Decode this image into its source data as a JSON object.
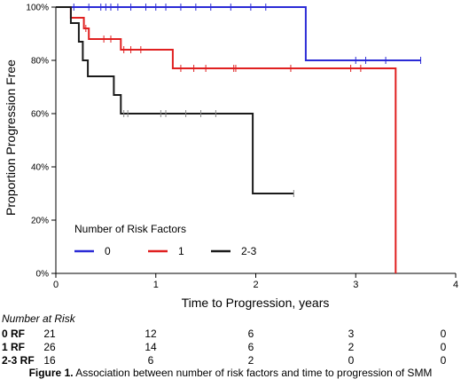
{
  "chart_data": {
    "type": "line",
    "title": "",
    "xlabel": "Time to Progression, years",
    "ylabel": "Proportion Progression Free",
    "xlim": [
      0,
      4
    ],
    "ylim": [
      0,
      100
    ],
    "x_ticks": [
      "0",
      "1",
      "2",
      "3",
      "4"
    ],
    "y_ticks": [
      "0%",
      "20%",
      "40%",
      "60%",
      "80%",
      "100%"
    ],
    "grid": false,
    "legend": {
      "title": "Number of Risk Factors",
      "placement": "lower-left"
    },
    "series": [
      {
        "name": "0",
        "color": "#2b2bd6",
        "steps": [
          [
            0,
            100
          ],
          [
            2.5,
            100
          ],
          [
            2.5,
            80
          ],
          [
            3.65,
            80
          ]
        ],
        "censored": [
          [
            0.18,
            100
          ],
          [
            0.33,
            100
          ],
          [
            0.45,
            100
          ],
          [
            0.5,
            100
          ],
          [
            0.55,
            100
          ],
          [
            0.62,
            100
          ],
          [
            0.75,
            100
          ],
          [
            0.9,
            100
          ],
          [
            1.0,
            100
          ],
          [
            1.1,
            100
          ],
          [
            1.25,
            100
          ],
          [
            1.4,
            100
          ],
          [
            1.55,
            100
          ],
          [
            1.75,
            100
          ],
          [
            1.95,
            100
          ],
          [
            2.1,
            100
          ],
          [
            3.0,
            80
          ],
          [
            3.1,
            80
          ],
          [
            3.3,
            80
          ],
          [
            3.65,
            80
          ]
        ]
      },
      {
        "name": "1",
        "color": "#e02020",
        "steps": [
          [
            0,
            100
          ],
          [
            0.15,
            100
          ],
          [
            0.15,
            96
          ],
          [
            0.28,
            96
          ],
          [
            0.28,
            92
          ],
          [
            0.33,
            92
          ],
          [
            0.33,
            88
          ],
          [
            0.65,
            88
          ],
          [
            0.65,
            84
          ],
          [
            1.17,
            84
          ],
          [
            1.17,
            77
          ],
          [
            3.4,
            77
          ],
          [
            3.4,
            0
          ]
        ],
        "censored": [
          [
            0.3,
            92
          ],
          [
            0.48,
            88
          ],
          [
            0.55,
            88
          ],
          [
            0.68,
            84
          ],
          [
            0.75,
            84
          ],
          [
            0.85,
            84
          ],
          [
            1.25,
            77
          ],
          [
            1.38,
            77
          ],
          [
            1.5,
            77
          ],
          [
            1.78,
            77
          ],
          [
            1.8,
            77
          ],
          [
            2.35,
            77
          ],
          [
            2.95,
            77
          ],
          [
            3.05,
            77
          ]
        ]
      },
      {
        "name": "2-3",
        "color": "#1a1a1a",
        "steps": [
          [
            0,
            100
          ],
          [
            0.15,
            100
          ],
          [
            0.15,
            94
          ],
          [
            0.23,
            94
          ],
          [
            0.23,
            87
          ],
          [
            0.27,
            87
          ],
          [
            0.27,
            80
          ],
          [
            0.32,
            80
          ],
          [
            0.32,
            74
          ],
          [
            0.58,
            74
          ],
          [
            0.58,
            67
          ],
          [
            0.65,
            67
          ],
          [
            0.65,
            60
          ],
          [
            1.97,
            60
          ],
          [
            1.97,
            30
          ],
          [
            2.38,
            30
          ]
        ],
        "censored": [
          [
            0.68,
            60
          ],
          [
            0.72,
            60
          ],
          [
            1.05,
            60
          ],
          [
            1.1,
            60
          ],
          [
            1.3,
            60
          ],
          [
            1.45,
            60
          ],
          [
            1.6,
            60
          ],
          [
            2.38,
            30
          ]
        ]
      }
    ]
  },
  "risk_table": {
    "header": "Number at Risk",
    "rows": [
      {
        "label": "0 RF",
        "values": [
          "21",
          "12",
          "6",
          "3",
          "0"
        ]
      },
      {
        "label": "1 RF",
        "values": [
          "26",
          "14",
          "6",
          "2",
          "0"
        ]
      },
      {
        "label": "2-3 RF",
        "values": [
          "16",
          "6",
          "2",
          "0",
          "0"
        ]
      }
    ]
  },
  "caption": {
    "prefix": "Figure 1.",
    "text": " Association between number of risk factors and time to progression of SMM"
  }
}
